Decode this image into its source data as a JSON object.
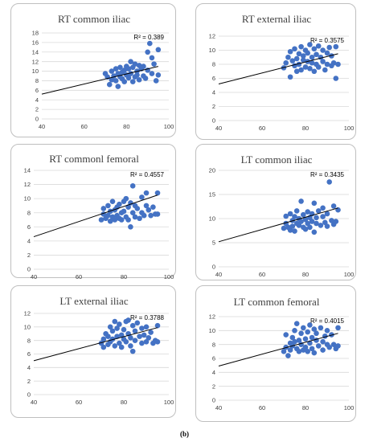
{
  "caption": "(b)",
  "style": {
    "marker_color": "#4472c4",
    "line_color": "#000000",
    "grid_color": "#d9d9d9"
  },
  "chart_data": [
    {
      "type": "scatter",
      "title": "RT common iliac",
      "r2_label": "R² = 0.389",
      "xlim": [
        40,
        100
      ],
      "xticks": [
        40,
        60,
        80,
        100
      ],
      "ylim": [
        0,
        18
      ],
      "yticks": [
        0,
        2,
        4,
        6,
        8,
        10,
        12,
        14,
        16,
        18
      ],
      "trendline": {
        "x": [
          40,
          95
        ],
        "y": [
          5.2,
          11.0
        ]
      },
      "points": [
        [
          70,
          9.5
        ],
        [
          71,
          8.8
        ],
        [
          72,
          7.2
        ],
        [
          73,
          10.0
        ],
        [
          73,
          8.2
        ],
        [
          74,
          9.0
        ],
        [
          75,
          10.5
        ],
        [
          75,
          8.0
        ],
        [
          76,
          9.5
        ],
        [
          76,
          6.8
        ],
        [
          77,
          8.8
        ],
        [
          77,
          10.8
        ],
        [
          78,
          9.8
        ],
        [
          78,
          8.4
        ],
        [
          79,
          10.2
        ],
        [
          79,
          7.8
        ],
        [
          80,
          9.2
        ],
        [
          80,
          11.0
        ],
        [
          81,
          10.5
        ],
        [
          81,
          8.6
        ],
        [
          82,
          12.0
        ],
        [
          82,
          9.5
        ],
        [
          83,
          10.8
        ],
        [
          83,
          7.8
        ],
        [
          84,
          11.5
        ],
        [
          84,
          8.8
        ],
        [
          85,
          10.0
        ],
        [
          85,
          9.2
        ],
        [
          86,
          11.2
        ],
        [
          86,
          8.2
        ],
        [
          87,
          10.5
        ],
        [
          88,
          9.0
        ],
        [
          88,
          11.0
        ],
        [
          89,
          8.5
        ],
        [
          90,
          10.2
        ],
        [
          90,
          14.0
        ],
        [
          91,
          15.8
        ],
        [
          92,
          12.8
        ],
        [
          92,
          9.5
        ],
        [
          93,
          11.5
        ],
        [
          94,
          8.0
        ],
        [
          95,
          14.5
        ],
        [
          95,
          9.2
        ]
      ]
    },
    {
      "type": "scatter",
      "title": "RT external iliac",
      "r2_label": "R² = 0.3575",
      "xlim": [
        40,
        100
      ],
      "xticks": [
        40,
        60,
        80,
        100
      ],
      "ylim": [
        0,
        12
      ],
      "yticks": [
        0,
        2,
        4,
        6,
        8,
        10,
        12
      ],
      "trendline": {
        "x": [
          40,
          95
        ],
        "y": [
          5.2,
          9.5
        ]
      },
      "points": [
        [
          70,
          7.5
        ],
        [
          71,
          8.2
        ],
        [
          72,
          9.0
        ],
        [
          73,
          6.2
        ],
        [
          73,
          9.8
        ],
        [
          74,
          8.5
        ],
        [
          75,
          7.8
        ],
        [
          75,
          10.2
        ],
        [
          76,
          8.8
        ],
        [
          76,
          7.0
        ],
        [
          77,
          9.5
        ],
        [
          77,
          8.0
        ],
        [
          78,
          10.5
        ],
        [
          78,
          7.2
        ],
        [
          79,
          8.6
        ],
        [
          79,
          9.2
        ],
        [
          80,
          7.6
        ],
        [
          80,
          10.0
        ],
        [
          81,
          8.4
        ],
        [
          81,
          9.6
        ],
        [
          82,
          10.8
        ],
        [
          82,
          7.4
        ],
        [
          83,
          9.0
        ],
        [
          83,
          8.2
        ],
        [
          84,
          10.2
        ],
        [
          84,
          7.0
        ],
        [
          85,
          9.4
        ],
        [
          85,
          8.0
        ],
        [
          86,
          10.6
        ],
        [
          86,
          7.6
        ],
        [
          87,
          9.0
        ],
        [
          88,
          8.4
        ],
        [
          88,
          10.0
        ],
        [
          89,
          7.2
        ],
        [
          90,
          9.6
        ],
        [
          90,
          8.0
        ],
        [
          91,
          10.4
        ],
        [
          92,
          7.8
        ],
        [
          92,
          9.2
        ],
        [
          93,
          8.2
        ],
        [
          94,
          6.0
        ],
        [
          94,
          10.5
        ],
        [
          95,
          8.0
        ]
      ]
    },
    {
      "type": "scatter",
      "title": "RT commonl femoral",
      "r2_label": "R² = 0.4557",
      "xlim": [
        40,
        100
      ],
      "xticks": [
        40,
        60,
        80,
        100
      ],
      "ylim": [
        0,
        14
      ],
      "yticks": [
        0,
        2,
        4,
        6,
        8,
        10,
        12,
        14
      ],
      "trendline": {
        "x": [
          40,
          95
        ],
        "y": [
          4.6,
          10.5
        ]
      },
      "points": [
        [
          70,
          7.0
        ],
        [
          71,
          7.8
        ],
        [
          71,
          8.6
        ],
        [
          72,
          7.2
        ],
        [
          73,
          9.0
        ],
        [
          73,
          7.6
        ],
        [
          74,
          8.2
        ],
        [
          74,
          6.8
        ],
        [
          75,
          9.6
        ],
        [
          75,
          7.4
        ],
        [
          76,
          8.4
        ],
        [
          76,
          7.0
        ],
        [
          77,
          8.8
        ],
        [
          77,
          7.6
        ],
        [
          78,
          9.2
        ],
        [
          78,
          7.2
        ],
        [
          79,
          8.0
        ],
        [
          79,
          7.0
        ],
        [
          80,
          9.6
        ],
        [
          80,
          8.2
        ],
        [
          81,
          10.0
        ],
        [
          81,
          7.4
        ],
        [
          82,
          8.8
        ],
        [
          82,
          7.0
        ],
        [
          83,
          9.4
        ],
        [
          83,
          6.0
        ],
        [
          84,
          11.8
        ],
        [
          84,
          8.0
        ],
        [
          85,
          9.0
        ],
        [
          85,
          7.4
        ],
        [
          86,
          8.6
        ],
        [
          87,
          7.2
        ],
        [
          88,
          10.2
        ],
        [
          88,
          8.0
        ],
        [
          89,
          7.6
        ],
        [
          90,
          9.0
        ],
        [
          90,
          10.8
        ],
        [
          91,
          8.4
        ],
        [
          92,
          7.6
        ],
        [
          93,
          8.8
        ],
        [
          94,
          7.8
        ],
        [
          95,
          10.8
        ],
        [
          95,
          7.8
        ]
      ]
    },
    {
      "type": "scatter",
      "title": "LT common iliac",
      "r2_label": "R² = 0.3435",
      "xlim": [
        40,
        100
      ],
      "xticks": [
        40,
        60,
        80,
        100
      ],
      "ylim": [
        0,
        20
      ],
      "yticks": [
        0,
        5,
        10,
        15,
        20
      ],
      "trendline": {
        "x": [
          40,
          95
        ],
        "y": [
          5.2,
          12.2
        ]
      },
      "points": [
        [
          70,
          8.0
        ],
        [
          71,
          10.5
        ],
        [
          71,
          9.0
        ],
        [
          72,
          8.2
        ],
        [
          73,
          11.0
        ],
        [
          73,
          7.6
        ],
        [
          74,
          9.6
        ],
        [
          74,
          8.4
        ],
        [
          75,
          10.4
        ],
        [
          75,
          7.4
        ],
        [
          76,
          9.0
        ],
        [
          76,
          11.6
        ],
        [
          77,
          8.6
        ],
        [
          77,
          10.0
        ],
        [
          78,
          13.6
        ],
        [
          78,
          9.4
        ],
        [
          79,
          8.2
        ],
        [
          79,
          10.8
        ],
        [
          80,
          9.8
        ],
        [
          80,
          7.8
        ],
        [
          81,
          11.4
        ],
        [
          81,
          9.0
        ],
        [
          82,
          10.2
        ],
        [
          82,
          8.2
        ],
        [
          83,
          11.0
        ],
        [
          83,
          9.4
        ],
        [
          84,
          13.2
        ],
        [
          84,
          7.2
        ],
        [
          85,
          10.2
        ],
        [
          85,
          9.0
        ],
        [
          86,
          11.6
        ],
        [
          87,
          8.6
        ],
        [
          88,
          10.4
        ],
        [
          88,
          12.2
        ],
        [
          89,
          9.2
        ],
        [
          90,
          11.0
        ],
        [
          90,
          8.4
        ],
        [
          91,
          17.6
        ],
        [
          92,
          9.6
        ],
        [
          93,
          12.6
        ],
        [
          93,
          8.8
        ],
        [
          94,
          9.4
        ],
        [
          95,
          11.8
        ]
      ]
    },
    {
      "type": "scatter",
      "title": "LT external iliac",
      "r2_label": "R² = 0.3788",
      "xlim": [
        40,
        100
      ],
      "xticks": [
        40,
        60,
        80,
        100
      ],
      "ylim": [
        0,
        12
      ],
      "yticks": [
        0,
        2,
        4,
        6,
        8,
        10,
        12
      ],
      "trendline": {
        "x": [
          40,
          95
        ],
        "y": [
          5.0,
          9.9
        ]
      },
      "points": [
        [
          70,
          7.6
        ],
        [
          71,
          8.2
        ],
        [
          71,
          7.0
        ],
        [
          72,
          9.0
        ],
        [
          73,
          7.4
        ],
        [
          73,
          8.6
        ],
        [
          74,
          10.0
        ],
        [
          74,
          7.8
        ],
        [
          75,
          9.4
        ],
        [
          75,
          8.2
        ],
        [
          76,
          10.8
        ],
        [
          76,
          7.2
        ],
        [
          77,
          8.6
        ],
        [
          77,
          9.8
        ],
        [
          78,
          7.6
        ],
        [
          78,
          10.4
        ],
        [
          79,
          8.8
        ],
        [
          79,
          7.0
        ],
        [
          80,
          9.6
        ],
        [
          80,
          8.2
        ],
        [
          81,
          10.8
        ],
        [
          81,
          7.8
        ],
        [
          82,
          9.0
        ],
        [
          82,
          11.0
        ],
        [
          83,
          8.4
        ],
        [
          83,
          7.2
        ],
        [
          84,
          10.2
        ],
        [
          84,
          6.4
        ],
        [
          85,
          9.4
        ],
        [
          85,
          8.0
        ],
        [
          86,
          10.6
        ],
        [
          87,
          8.6
        ],
        [
          88,
          9.8
        ],
        [
          88,
          7.6
        ],
        [
          89,
          8.8
        ],
        [
          90,
          10.0
        ],
        [
          90,
          7.8
        ],
        [
          91,
          8.4
        ],
        [
          92,
          9.2
        ],
        [
          93,
          7.6
        ],
        [
          94,
          8.0
        ],
        [
          95,
          10.2
        ],
        [
          95,
          7.8
        ]
      ]
    },
    {
      "type": "scatter",
      "title": "LT common femoral",
      "r2_label": "R² = 0.4015",
      "xlim": [
        40,
        100
      ],
      "xticks": [
        40,
        60,
        80,
        100
      ],
      "ylim": [
        0,
        12
      ],
      "yticks": [
        0,
        2,
        4,
        6,
        8,
        10,
        12
      ],
      "trendline": {
        "x": [
          40,
          95
        ],
        "y": [
          4.9,
          9.6
        ]
      },
      "points": [
        [
          70,
          7.0
        ],
        [
          71,
          7.6
        ],
        [
          71,
          9.4
        ],
        [
          72,
          6.4
        ],
        [
          73,
          8.2
        ],
        [
          73,
          7.2
        ],
        [
          74,
          9.0
        ],
        [
          74,
          7.8
        ],
        [
          75,
          8.4
        ],
        [
          75,
          10.0
        ],
        [
          76,
          7.4
        ],
        [
          76,
          11.0
        ],
        [
          77,
          8.6
        ],
        [
          77,
          7.0
        ],
        [
          78,
          9.6
        ],
        [
          78,
          8.0
        ],
        [
          79,
          7.2
        ],
        [
          79,
          10.4
        ],
        [
          80,
          8.8
        ],
        [
          80,
          7.6
        ],
        [
          81,
          9.8
        ],
        [
          81,
          7.0
        ],
        [
          82,
          10.8
        ],
        [
          82,
          8.2
        ],
        [
          83,
          9.0
        ],
        [
          83,
          7.4
        ],
        [
          84,
          10.2
        ],
        [
          84,
          6.8
        ],
        [
          85,
          8.6
        ],
        [
          85,
          9.6
        ],
        [
          86,
          7.8
        ],
        [
          87,
          10.4
        ],
        [
          88,
          8.4
        ],
        [
          88,
          7.2
        ],
        [
          89,
          9.2
        ],
        [
          90,
          8.0
        ],
        [
          90,
          10.0
        ],
        [
          91,
          7.6
        ],
        [
          92,
          9.4
        ],
        [
          93,
          8.0
        ],
        [
          94,
          7.4
        ],
        [
          95,
          10.4
        ],
        [
          95,
          7.8
        ]
      ]
    }
  ]
}
